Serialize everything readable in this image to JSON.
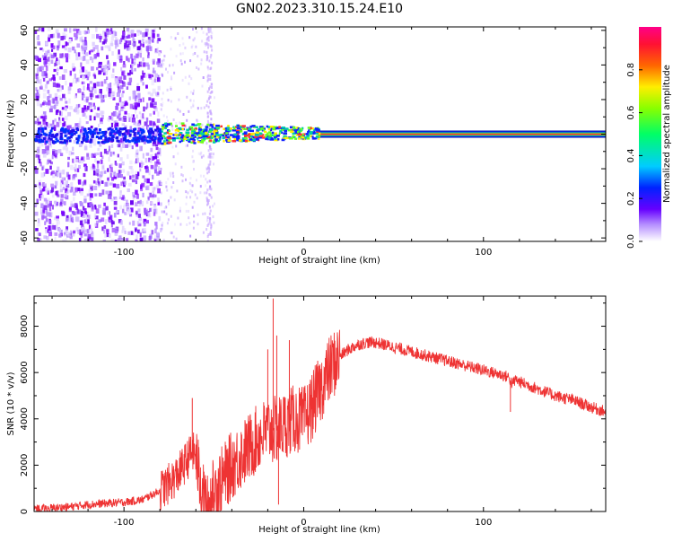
{
  "title": "GN02.2023.310.15.24.E10",
  "chart_data": [
    {
      "type": "heatmap",
      "xlabel": "Height of straight line (km)",
      "ylabel": "Frequency (Hz)",
      "xlim": [
        -150,
        168
      ],
      "ylim": [
        -62,
        62
      ],
      "xticks": [
        -100,
        0,
        100
      ],
      "yticks": [
        -60,
        -40,
        -20,
        0,
        20,
        40,
        60
      ],
      "colorbar": {
        "label": "Normalized spectral amplitude",
        "range": [
          0,
          1
        ],
        "ticks": [
          0.0,
          0.2,
          0.4,
          0.6,
          0.8
        ]
      },
      "description_points": {
        "noise_region_x": [
          -150,
          -80
        ],
        "sparse_noise_region_x": [
          -80,
          -50
        ],
        "signal_start_x": -80,
        "carrier_frequency_hz": 0
      }
    },
    {
      "type": "line",
      "xlabel": "Height of straight line (km)",
      "ylabel": "SNR (10 * v/v)",
      "xlim": [
        -150,
        168
      ],
      "ylim": [
        0,
        9300
      ],
      "xticks": [
        -100,
        0,
        100
      ],
      "yticks": [
        0,
        2000,
        4000,
        6000,
        8000
      ],
      "series": [
        {
          "color": "#ee3333",
          "x": [
            -150,
            -140,
            -130,
            -120,
            -110,
            -100,
            -90,
            -85,
            -80,
            -75,
            -70,
            -65,
            -62,
            -60,
            -58,
            -56,
            -54,
            -52,
            -50,
            -45,
            -40,
            -35,
            -30,
            -25,
            -20,
            -15,
            -10,
            -5,
            0,
            5,
            10,
            15,
            20,
            25,
            30,
            35,
            40,
            45,
            50,
            60,
            70,
            80,
            90,
            100,
            110,
            114,
            116,
            118,
            120,
            130,
            140,
            150,
            160,
            168
          ],
          "y": [
            100,
            150,
            200,
            300,
            350,
            400,
            500,
            700,
            900,
            1200,
            1600,
            2200,
            2600,
            2400,
            1400,
            600,
            300,
            500,
            900,
            1400,
            2000,
            2400,
            2800,
            3200,
            3500,
            3500,
            3800,
            4000,
            3900,
            4600,
            5400,
            6200,
            6700,
            7000,
            7200,
            7300,
            7300,
            7200,
            7100,
            6900,
            6700,
            6500,
            6300,
            6100,
            5900,
            5800,
            5500,
            5700,
            5600,
            5300,
            5000,
            4800,
            4500,
            4300
          ]
        }
      ],
      "spikes": [
        {
          "x": -62,
          "y": 4900
        },
        {
          "x": -17,
          "y": 9200
        },
        {
          "x": -20,
          "y": 7000
        },
        {
          "x": -15,
          "y": 7600
        },
        {
          "x": -14,
          "y": 300
        },
        {
          "x": -8,
          "y": 7400
        },
        {
          "x": 7,
          "y": 6200
        },
        {
          "x": 115,
          "y": 4300
        }
      ]
    }
  ]
}
